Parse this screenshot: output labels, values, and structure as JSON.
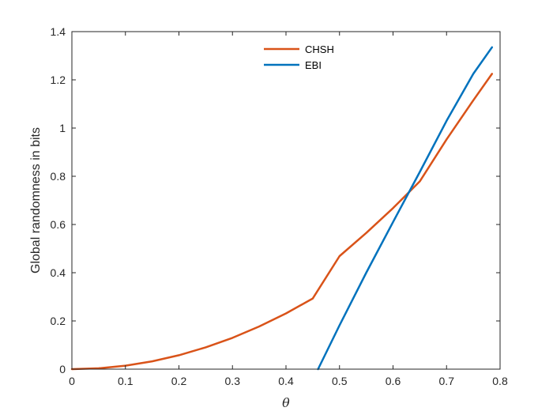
{
  "chart_data": {
    "type": "line",
    "xlabel": "θ",
    "ylabel": "Global randomness in bits",
    "xlim": [
      0,
      0.8
    ],
    "ylim": [
      0,
      1.4
    ],
    "xticks": [
      0,
      0.1,
      0.2,
      0.3,
      0.4,
      0.5,
      0.6,
      0.7,
      0.8
    ],
    "xtick_labels": [
      "0",
      "0.1",
      "0.2",
      "0.3",
      "0.4",
      "0.5",
      "0.6",
      "0.7",
      "0.8"
    ],
    "yticks": [
      0,
      0.2,
      0.4,
      0.6,
      0.8,
      1.0,
      1.2,
      1.4
    ],
    "ytick_labels": [
      "0",
      "0.2",
      "0.4",
      "0.6",
      "0.8",
      "1",
      "1.2",
      "1.4"
    ],
    "grid": false,
    "legend_position": "top-center",
    "series": [
      {
        "name": "CHSH",
        "color": "#D95319",
        "x": [
          0,
          0.05,
          0.1,
          0.15,
          0.2,
          0.25,
          0.3,
          0.35,
          0.4,
          0.45,
          0.5,
          0.55,
          0.6,
          0.65,
          0.7,
          0.75,
          0.785
        ],
        "y": [
          0,
          0.0036,
          0.0144,
          0.0325,
          0.0578,
          0.0904,
          0.13,
          0.177,
          0.231,
          0.293,
          0.469,
          0.565,
          0.668,
          0.779,
          0.953,
          1.115,
          1.225
        ]
      },
      {
        "name": "EBI",
        "color": "#0072BD",
        "x": [
          0.46,
          0.5,
          0.55,
          0.6,
          0.65,
          0.7,
          0.75,
          0.785
        ],
        "y": [
          0,
          0.182,
          0.4,
          0.61,
          0.818,
          1.03,
          1.225,
          1.335
        ]
      }
    ]
  }
}
